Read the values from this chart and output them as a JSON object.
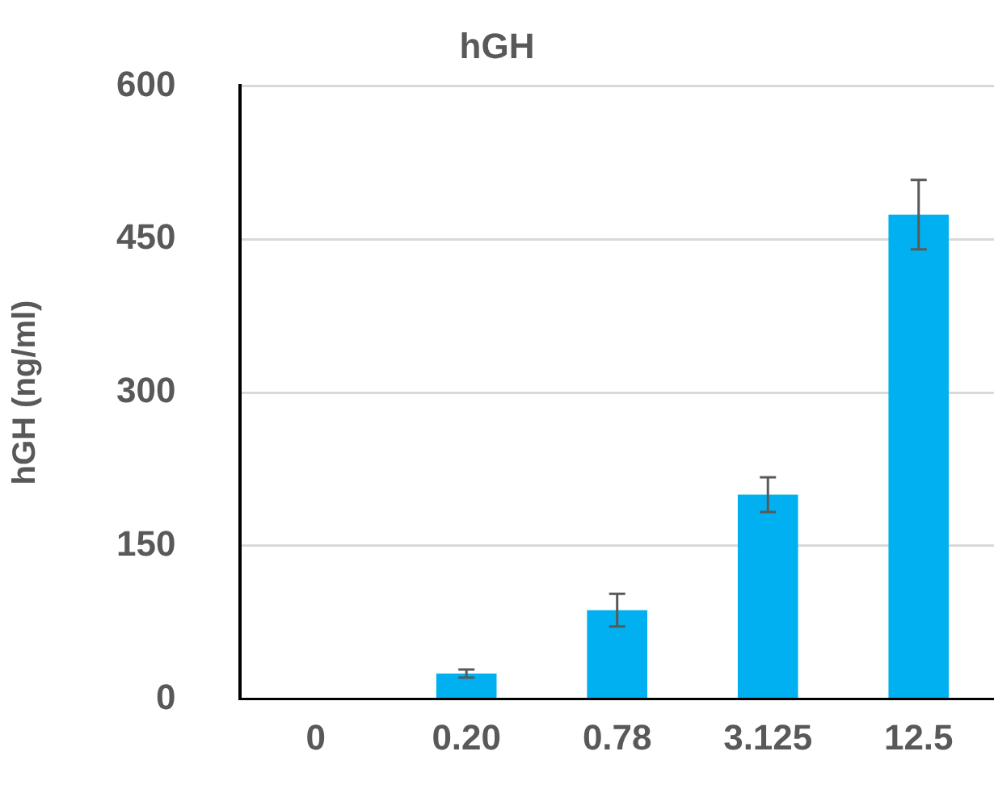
{
  "chart_data": {
    "type": "bar",
    "title": "hGH",
    "ylabel": "hGH (ng/ml)",
    "categories": [
      "0",
      "0.20",
      "0.78",
      "3.125",
      "12.5"
    ],
    "values": [
      0,
      25,
      87,
      200,
      474
    ],
    "errors": [
      null,
      4,
      16,
      17,
      34
    ],
    "color": "#00b0f0",
    "ylim": [
      0,
      600
    ],
    "yticks": [
      0,
      150,
      300,
      450,
      600
    ],
    "grid": "y",
    "legend": false
  }
}
